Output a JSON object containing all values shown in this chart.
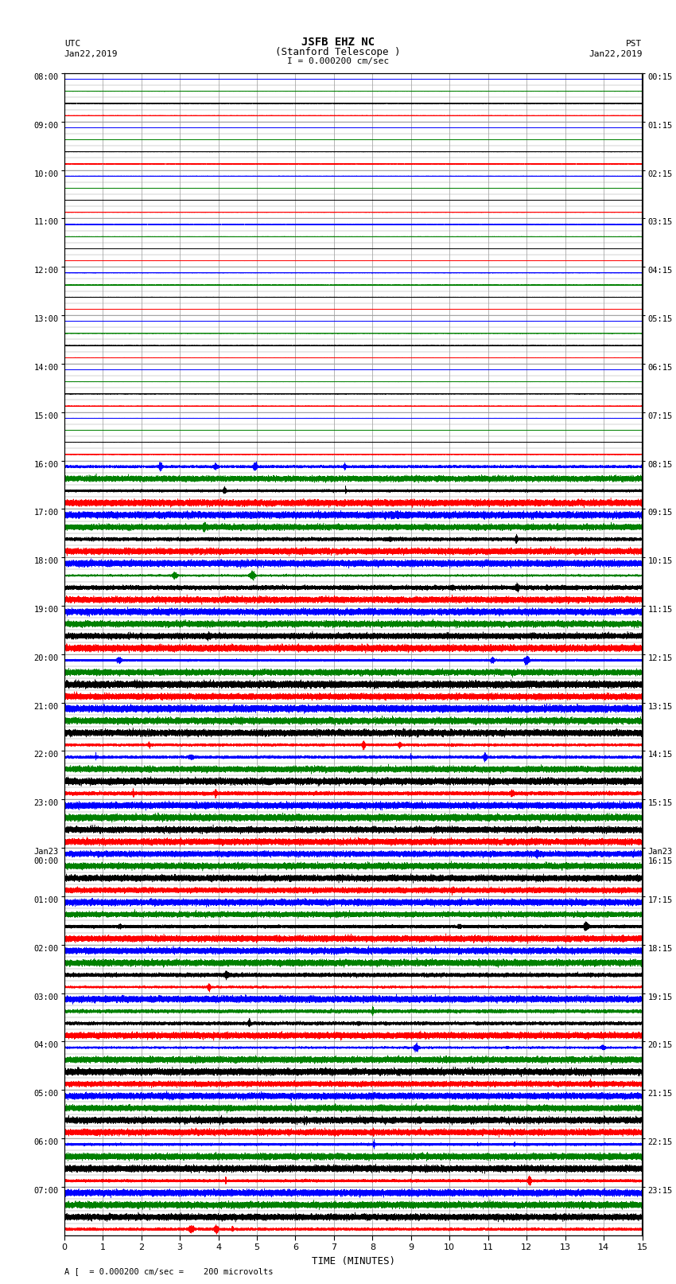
{
  "title_line1": "JSFB EHZ NC",
  "title_line2": "(Stanford Telescope )",
  "scale_label": "I = 0.000200 cm/sec",
  "footer_label": "A [  = 0.000200 cm/sec =    200 microvolts",
  "xlabel": "TIME (MINUTES)",
  "left_times_major": [
    "08:00",
    "09:00",
    "10:00",
    "11:00",
    "12:00",
    "13:00",
    "14:00",
    "15:00",
    "16:00",
    "17:00",
    "18:00",
    "19:00",
    "20:00",
    "21:00",
    "22:00",
    "23:00",
    "Jan23\n00:00",
    "01:00",
    "02:00",
    "03:00",
    "04:00",
    "05:00",
    "06:00",
    "07:00"
  ],
  "right_times_major": [
    "00:15",
    "01:15",
    "02:15",
    "03:15",
    "04:15",
    "05:15",
    "06:15",
    "07:15",
    "08:15",
    "09:15",
    "10:15",
    "11:15",
    "12:15",
    "13:15",
    "14:15",
    "15:15",
    "Jan23\n16:15",
    "17:15",
    "18:15",
    "19:15",
    "20:15",
    "21:15",
    "22:15",
    "23:15"
  ],
  "n_hours_quiet": 8,
  "n_hours_active": 16,
  "traces_per_hour": 4,
  "colors_per_group": [
    "blue",
    "green",
    "black",
    "red"
  ],
  "bg_color": "white",
  "grid_color": "#999999",
  "minutes": 15,
  "sample_rate": 50,
  "figsize": [
    8.5,
    16.13
  ],
  "dpi": 100
}
